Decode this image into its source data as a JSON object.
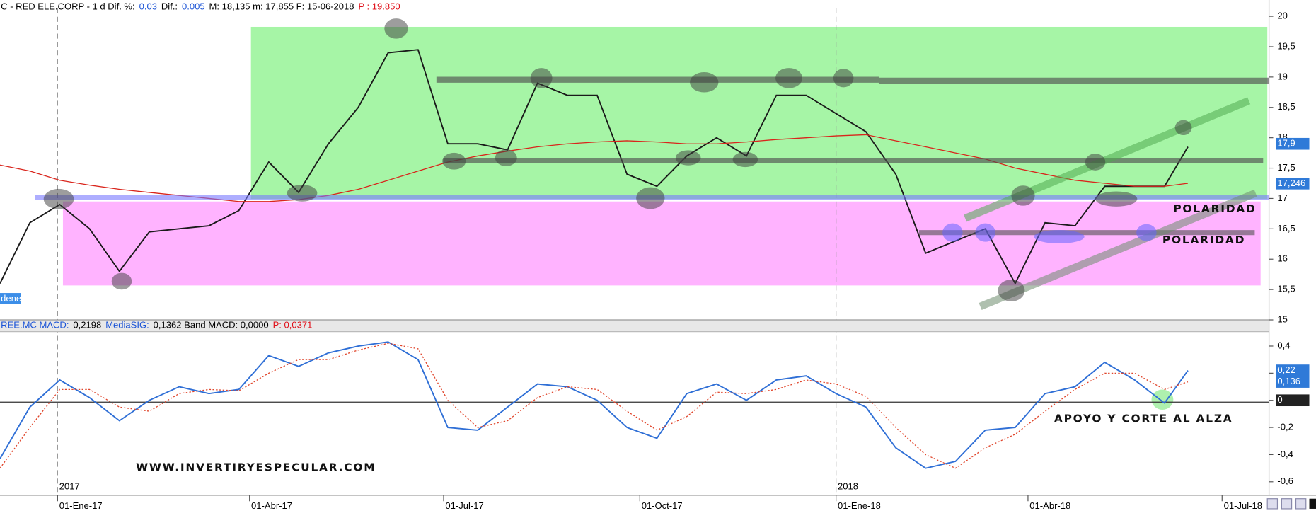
{
  "header": {
    "segments": [
      {
        "text": "C - RED ELE.CORP -  1 d  Dif. %:",
        "color": "#000"
      },
      {
        "text": "0.03",
        "color": "#1c54d6"
      },
      {
        "text": "Dif.:",
        "color": "#000"
      },
      {
        "text": "0.005",
        "color": "#1c54d6"
      },
      {
        "text": "M: 18,135  m: 17,855  F: 15-06-2018",
        "color": "#000"
      },
      {
        "text": "P : 19.850",
        "color": "#e0101a"
      }
    ],
    "tab": "denes",
    "sub_segments": [
      {
        "text": "REE.MC  MACD:",
        "color": "#1c54d6"
      },
      {
        "text": "0,2198",
        "color": "#000"
      },
      {
        "text": "MediaSIG:",
        "color": "#1c54d6"
      },
      {
        "text": "0,1362  Band MACD: 0,0000",
        "color": "#000"
      },
      {
        "text": "P: 0,0371",
        "color": "#e0101a"
      }
    ]
  },
  "chart_data": [
    {
      "type": "line",
      "x": [
        "2016-12-05",
        "2016-12-19",
        "2017-01-02",
        "2017-01-16",
        "2017-01-30",
        "2017-02-13",
        "2017-02-27",
        "2017-03-13",
        "2017-03-27",
        "2017-04-10",
        "2017-04-24",
        "2017-05-08",
        "2017-05-22",
        "2017-06-05",
        "2017-06-19",
        "2017-07-03",
        "2017-07-17",
        "2017-07-31",
        "2017-08-14",
        "2017-08-28",
        "2017-09-11",
        "2017-09-25",
        "2017-10-09",
        "2017-10-23",
        "2017-11-06",
        "2017-11-20",
        "2017-12-04",
        "2017-12-18",
        "2018-01-01",
        "2018-01-15",
        "2018-01-29",
        "2018-02-12",
        "2018-02-26",
        "2018-03-12",
        "2018-03-26",
        "2018-04-09",
        "2018-04-23",
        "2018-05-07",
        "2018-05-21",
        "2018-06-04",
        "2018-06-15"
      ],
      "series": [
        {
          "color": "#1a1a1a",
          "values": [
            15.6,
            16.6,
            16.9,
            16.5,
            15.8,
            16.45,
            16.5,
            16.55,
            16.8,
            17.6,
            17.1,
            17.9,
            18.5,
            19.4,
            19.45,
            17.9,
            17.9,
            17.8,
            18.9,
            18.7,
            18.7,
            17.4,
            17.2,
            17.7,
            18.0,
            17.7,
            18.7,
            18.7,
            18.4,
            18.1,
            17.4,
            16.1,
            16.3,
            16.5,
            15.6,
            16.6,
            16.55,
            17.2,
            17.2,
            17.2,
            17.85
          ]
        },
        {
          "color": "#d9251c",
          "values": [
            17.55,
            17.45,
            17.3,
            17.22,
            17.15,
            17.1,
            17.05,
            17.0,
            16.95,
            16.95,
            16.98,
            17.05,
            17.15,
            17.3,
            17.45,
            17.6,
            17.7,
            17.78,
            17.85,
            17.9,
            17.93,
            17.95,
            17.93,
            17.9,
            17.9,
            17.93,
            17.97,
            18.0,
            18.03,
            18.05,
            17.95,
            17.85,
            17.75,
            17.65,
            17.5,
            17.4,
            17.3,
            17.25,
            17.2,
            17.2,
            17.25
          ]
        }
      ],
      "xlim": [
        "2016-12-05",
        "2018-07-23"
      ],
      "ylim": [
        15,
        20.2
      ],
      "yticks": [
        15,
        {
          "value": 15.5,
          "label": "15,5"
        },
        16,
        {
          "value": 16.5,
          "label": "16,5"
        },
        17,
        {
          "value": 17.5,
          "label": "17,5"
        },
        18,
        {
          "value": 18.5,
          "label": "18,5"
        },
        19,
        {
          "value": 19.5,
          "label": "19,5"
        },
        20
      ],
      "value_tags": [
        {
          "value": 17.9,
          "label": "17,9"
        },
        {
          "value": 17.246,
          "label": "17,246"
        }
      ],
      "annotations": [
        "POLARIDAD",
        "POLARIDAD",
        "WWW.INVERTIRYESPECULAR.COM"
      ]
    },
    {
      "type": "line",
      "x": [
        "2016-12-05",
        "2016-12-19",
        "2017-01-02",
        "2017-01-16",
        "2017-01-30",
        "2017-02-13",
        "2017-02-27",
        "2017-03-13",
        "2017-03-27",
        "2017-04-10",
        "2017-04-24",
        "2017-05-08",
        "2017-05-22",
        "2017-06-05",
        "2017-06-19",
        "2017-07-03",
        "2017-07-17",
        "2017-07-31",
        "2017-08-14",
        "2017-08-28",
        "2017-09-11",
        "2017-09-25",
        "2017-10-09",
        "2017-10-23",
        "2017-11-06",
        "2017-11-20",
        "2017-12-04",
        "2017-12-18",
        "2018-01-01",
        "2018-01-15",
        "2018-01-29",
        "2018-02-12",
        "2018-02-26",
        "2018-03-12",
        "2018-03-26",
        "2018-04-09",
        "2018-04-23",
        "2018-05-07",
        "2018-05-21",
        "2018-06-04",
        "2018-06-15"
      ],
      "series": [
        {
          "color": "#2f6fd6",
          "values": [
            -0.43,
            -0.05,
            0.15,
            0.02,
            -0.15,
            0.0,
            0.1,
            0.05,
            0.08,
            0.33,
            0.25,
            0.35,
            0.4,
            0.43,
            0.3,
            -0.2,
            -0.22,
            -0.05,
            0.12,
            0.1,
            0.0,
            -0.2,
            -0.28,
            0.05,
            0.12,
            0.0,
            0.15,
            0.18,
            0.05,
            -0.05,
            -0.35,
            -0.5,
            -0.45,
            -0.22,
            -0.2,
            0.05,
            0.1,
            0.28,
            0.15,
            -0.02,
            0.22
          ]
        },
        {
          "color": "#e0452b",
          "values": [
            -0.5,
            -0.2,
            0.08,
            0.08,
            -0.05,
            -0.08,
            0.05,
            0.08,
            0.07,
            0.2,
            0.3,
            0.3,
            0.37,
            0.42,
            0.38,
            0.0,
            -0.2,
            -0.15,
            0.02,
            0.1,
            0.08,
            -0.08,
            -0.22,
            -0.12,
            0.06,
            0.05,
            0.08,
            0.15,
            0.12,
            0.03,
            -0.2,
            -0.4,
            -0.5,
            -0.35,
            -0.25,
            -0.08,
            0.08,
            0.2,
            0.2,
            0.08,
            0.136
          ]
        }
      ],
      "xlim": [
        "2016-12-05",
        "2018-07-23"
      ],
      "ylim": [
        -0.7,
        0.5
      ],
      "yticks": [
        {
          "value": 0.4,
          "label": "0,4"
        },
        {
          "value": 0.2,
          "label": "0,2"
        },
        0,
        {
          "value": -0.2,
          "label": "-0,2"
        },
        {
          "value": -0.4,
          "label": "-0,4"
        },
        {
          "value": -0.6,
          "label": "-0,6"
        }
      ],
      "xticks": [
        {
          "value": "2017-01-01",
          "label": "01-Ene-17"
        },
        {
          "value": "2017-04-01",
          "label": "01-Abr-17"
        },
        {
          "value": "2017-07-01",
          "label": "01-Jul-17"
        },
        {
          "value": "2017-10-01",
          "label": "01-Oct-17"
        },
        {
          "value": "2018-01-01",
          "label": "01-Ene-18"
        },
        {
          "value": "2018-04-01",
          "label": "01-Abr-18"
        },
        {
          "value": "2018-07-01",
          "label": "01-Jul-18"
        }
      ],
      "year_labels": [
        {
          "value": "2017-01-01",
          "label": "2017"
        },
        {
          "value": "2018-01-01",
          "label": "2018"
        }
      ],
      "value_tags": [
        {
          "value": 0.22,
          "label": "0,22"
        },
        {
          "value": 0.136,
          "label": "0,136"
        },
        0
      ],
      "annotations": [
        "APOYO Y CORTE AL ALZA"
      ]
    }
  ]
}
